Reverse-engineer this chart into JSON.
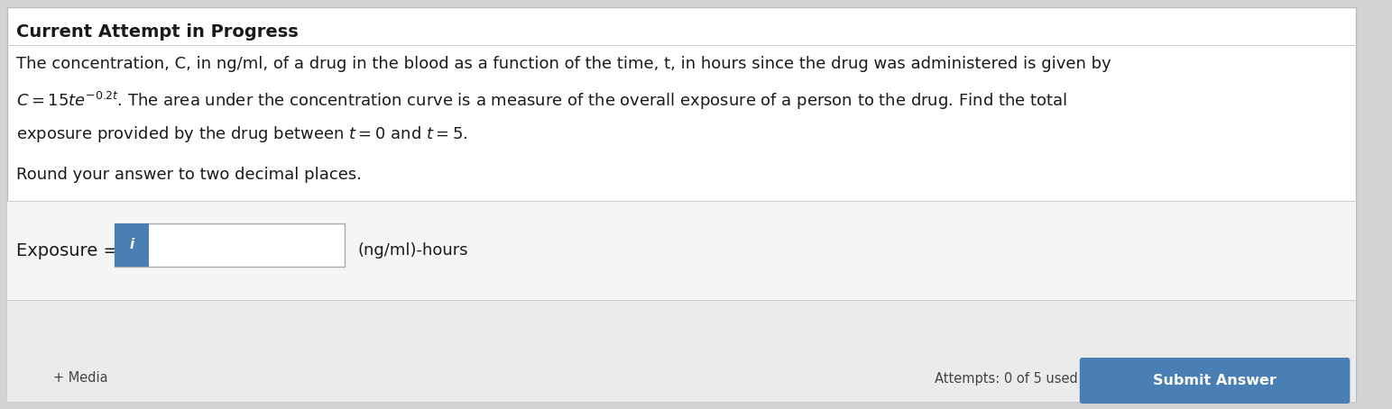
{
  "bg_color": "#d4d4d4",
  "panel_color": "#ffffff",
  "header_text": "Current Attempt in Progress",
  "header_fontsize": 14,
  "body_fontsize": 13,
  "small_fontsize": 10.5,
  "text_color": "#1a1a1a",
  "gray_text": "#444444",
  "line1": "The concentration, C, in ng/ml, of a drug in the blood as a function of the time, t, in hours since the drug was administered is given by",
  "line2_math": "$C = 15te^{-0.2t}$",
  "line2_rest": ". The area under the concentration curve is a measure of the overall exposure of a person to the drug. Find the total",
  "line3": "exposure provided by the drug between ",
  "line3_math1": "$t = 0$",
  "line3_and": " and ",
  "line3_math2": "$t = 5$",
  "line3_end": ".",
  "line4": "Round your answer to two decimal places.",
  "exposure_label": "Exposure = ",
  "units_label": "(ng/ml)-hours",
  "info_icon_color": "#4a7fb5",
  "submit_button_color": "#4a7fb5",
  "submit_button_text": "Submit Answer",
  "attempts_text": "Attempts: 0 of 5 used",
  "bottom_text": "+ Media",
  "input_box_color": "#ffffff",
  "input_border_color": "#aaaaaa",
  "divider_color": "#cccccc",
  "bottom_strip_color": "#ebebeb"
}
